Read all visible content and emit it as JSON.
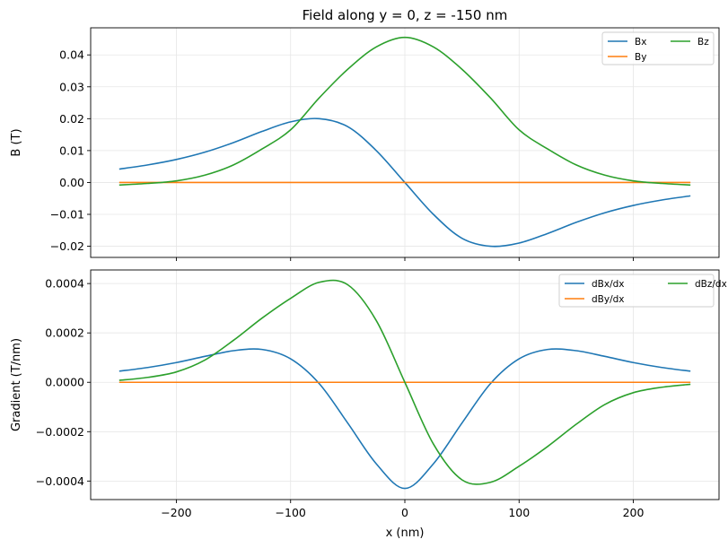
{
  "chart_data": [
    {
      "type": "line",
      "title": "Field along y = 0, z = -150 nm",
      "xlabel": "",
      "ylabel": "B (T)",
      "xlim": [
        -275,
        275
      ],
      "ylim": [
        -0.0235,
        0.0485
      ],
      "xticks": [
        -200,
        -100,
        0,
        100,
        200
      ],
      "xtick_labels": [
        "",
        "",
        "",
        "",
        ""
      ],
      "yticks": [
        -0.02,
        -0.01,
        0.0,
        0.01,
        0.02,
        0.03,
        0.04
      ],
      "ytick_labels": [
        "−0.02",
        "−0.01",
        "0.00",
        "0.01",
        "0.02",
        "0.03",
        "0.04"
      ],
      "grid": true,
      "legend": {
        "placement": "top-right",
        "columns": 2
      },
      "x": [
        -250,
        -225,
        -200,
        -175,
        -150,
        -125,
        -100,
        -75,
        -50,
        -25,
        0,
        25,
        50,
        75,
        100,
        125,
        150,
        175,
        200,
        225,
        250
      ],
      "series": [
        {
          "name": "Bx",
          "color": "#1f77b4",
          "values": [
            0.0042,
            0.0055,
            0.0072,
            0.0095,
            0.0125,
            0.016,
            0.019,
            0.02,
            0.0175,
            0.01,
            0.0,
            -0.01,
            -0.0175,
            -0.02,
            -0.019,
            -0.016,
            -0.0125,
            -0.0095,
            -0.0072,
            -0.0055,
            -0.0042
          ]
        },
        {
          "name": "By",
          "color": "#ff7f0e",
          "values": [
            0,
            0,
            0,
            0,
            0,
            0,
            0,
            0,
            0,
            0,
            0,
            0,
            0,
            0,
            0,
            0,
            0,
            0,
            0,
            0,
            0
          ]
        },
        {
          "name": "Bz",
          "color": "#2ca02c",
          "values": [
            -0.0008,
            -0.0003,
            0.0005,
            0.0023,
            0.0055,
            0.0105,
            0.0165,
            0.0265,
            0.0355,
            0.0425,
            0.0455,
            0.0425,
            0.0355,
            0.0265,
            0.0165,
            0.0105,
            0.0055,
            0.0023,
            0.0005,
            -0.0003,
            -0.0008
          ]
        }
      ]
    },
    {
      "type": "line",
      "title": "",
      "xlabel": "x (nm)",
      "ylabel": "Gradient (T/nm)",
      "xlim": [
        -275,
        275
      ],
      "ylim": [
        -0.000475,
        0.000455
      ],
      "xticks": [
        -200,
        -100,
        0,
        100,
        200
      ],
      "xtick_labels": [
        "−200",
        "−100",
        "0",
        "100",
        "200"
      ],
      "yticks": [
        -0.0004,
        -0.0002,
        0.0,
        0.0002,
        0.0004
      ],
      "ytick_labels": [
        "−0.0004",
        "−0.0002",
        "0.0000",
        "0.0002",
        "0.0004"
      ],
      "grid": true,
      "legend": {
        "placement": "top-right",
        "columns": 2
      },
      "x": [
        -250,
        -225,
        -200,
        -175,
        -150,
        -125,
        -100,
        -75,
        -50,
        -25,
        0,
        25,
        50,
        75,
        100,
        125,
        150,
        175,
        200,
        225,
        250
      ],
      "series": [
        {
          "name": "dBx/dx",
          "color": "#1f77b4",
          "values": [
            4.5e-05,
            6e-05,
            8e-05,
            0.000105,
            0.000128,
            0.000133,
            9.5e-05,
            -5e-06,
            -0.000165,
            -0.00033,
            -0.00043,
            -0.00033,
            -0.000165,
            -5e-06,
            9.5e-05,
            0.000133,
            0.000128,
            0.000105,
            8e-05,
            6e-05,
            4.5e-05
          ]
        },
        {
          "name": "dBy/dx",
          "color": "#ff7f0e",
          "values": [
            0,
            0,
            0,
            0,
            0,
            0,
            0,
            0,
            0,
            0,
            0,
            0,
            0,
            0,
            0,
            0,
            0,
            0,
            0,
            0,
            0
          ]
        },
        {
          "name": "dBz/dx",
          "color": "#2ca02c",
          "values": [
            8e-06,
            2e-05,
            4.2e-05,
            9e-05,
            0.00017,
            0.00026,
            0.00034,
            0.000405,
            0.000395,
            0.00025,
            0.0,
            -0.00025,
            -0.000395,
            -0.000405,
            -0.00034,
            -0.00026,
            -0.00017,
            -9e-05,
            -4.2e-05,
            -2e-05,
            -8e-06
          ]
        }
      ]
    }
  ]
}
